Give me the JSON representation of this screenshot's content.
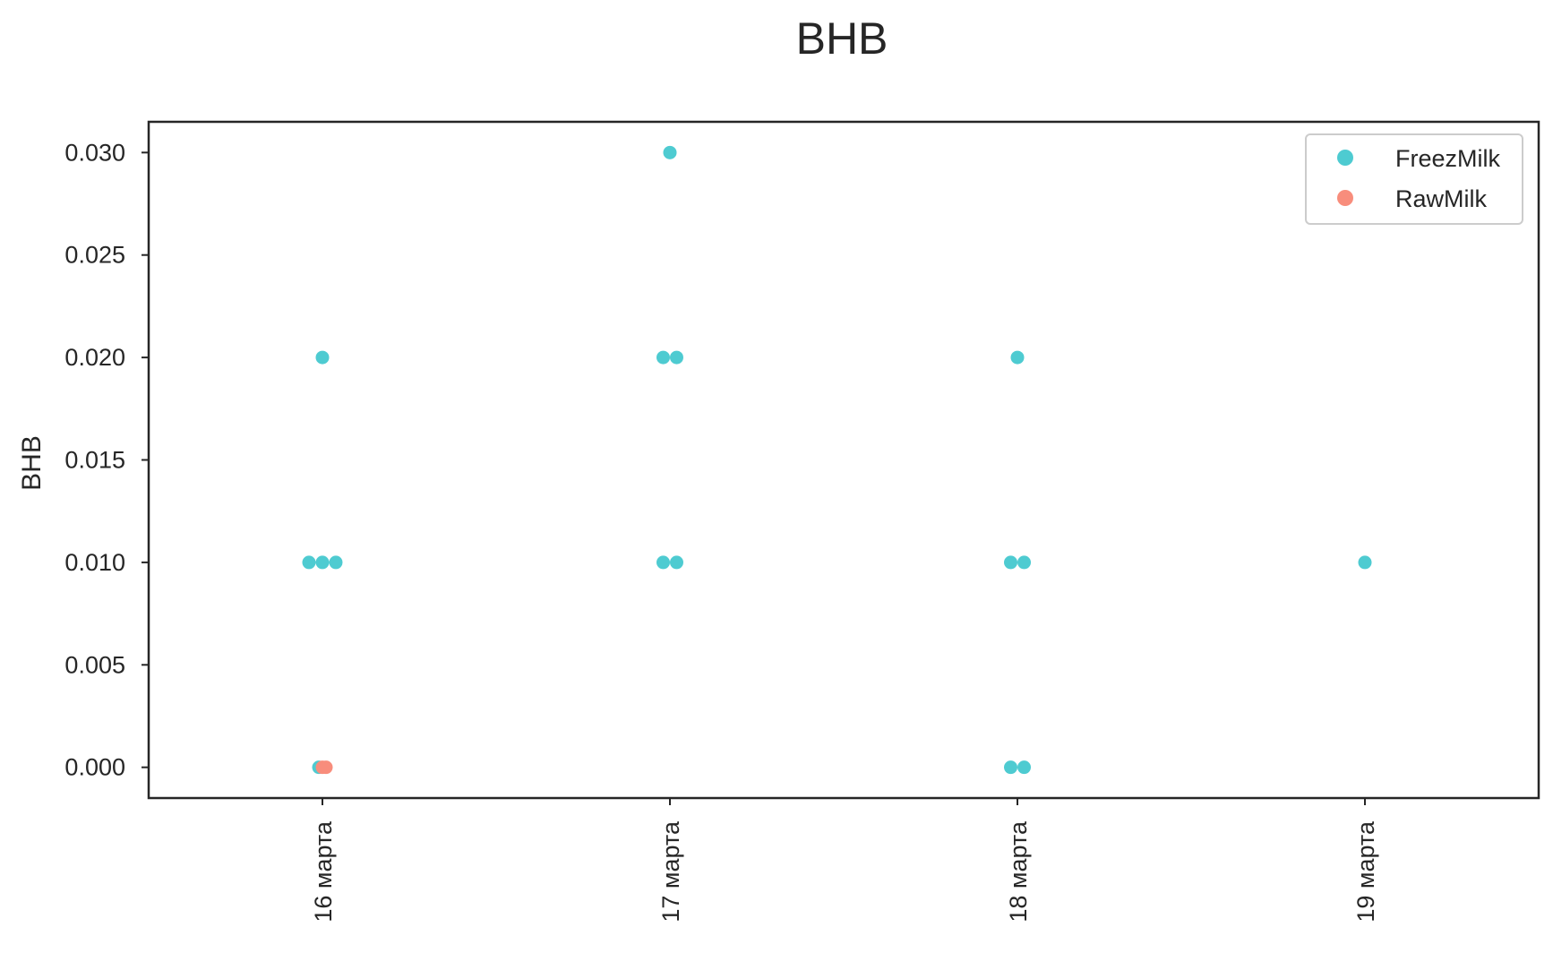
{
  "chart_data": {
    "type": "scatter",
    "title": "BHB",
    "xlabel": "",
    "ylabel": "BHB",
    "categories": [
      "16 марта",
      "17 марта",
      "18 марта",
      "19 марта"
    ],
    "ylim": [
      -0.0015,
      0.0315
    ],
    "yticks": [
      "0.000",
      "0.005",
      "0.010",
      "0.015",
      "0.020",
      "0.025",
      "0.030"
    ],
    "ytick_values": [
      0,
      0.005,
      0.01,
      0.015,
      0.02,
      0.025,
      0.03
    ],
    "grid": false,
    "legend_position": "top-right",
    "series": [
      {
        "name": "FreezMilk",
        "color": "#4ecbd1",
        "points": [
          {
            "category": "16 марта",
            "y": 0.02
          },
          {
            "category": "16 марта",
            "y": 0.01
          },
          {
            "category": "16 марта",
            "y": 0.01
          },
          {
            "category": "16 марта",
            "y": 0.01
          },
          {
            "category": "16 марта",
            "y": 0.0
          },
          {
            "category": "17 марта",
            "y": 0.03
          },
          {
            "category": "17 марта",
            "y": 0.02
          },
          {
            "category": "17 марта",
            "y": 0.02
          },
          {
            "category": "17 марта",
            "y": 0.01
          },
          {
            "category": "17 марта",
            "y": 0.01
          },
          {
            "category": "18 марта",
            "y": 0.02
          },
          {
            "category": "18 марта",
            "y": 0.01
          },
          {
            "category": "18 марта",
            "y": 0.01
          },
          {
            "category": "18 марта",
            "y": 0.0
          },
          {
            "category": "18 марта",
            "y": 0.0
          },
          {
            "category": "19 марта",
            "y": 0.01
          }
        ]
      },
      {
        "name": "RawMilk",
        "color": "#f88d7c",
        "points": [
          {
            "category": "16 марта",
            "y": 0.0
          },
          {
            "category": "16 марта",
            "y": 0.0
          }
        ]
      }
    ]
  }
}
